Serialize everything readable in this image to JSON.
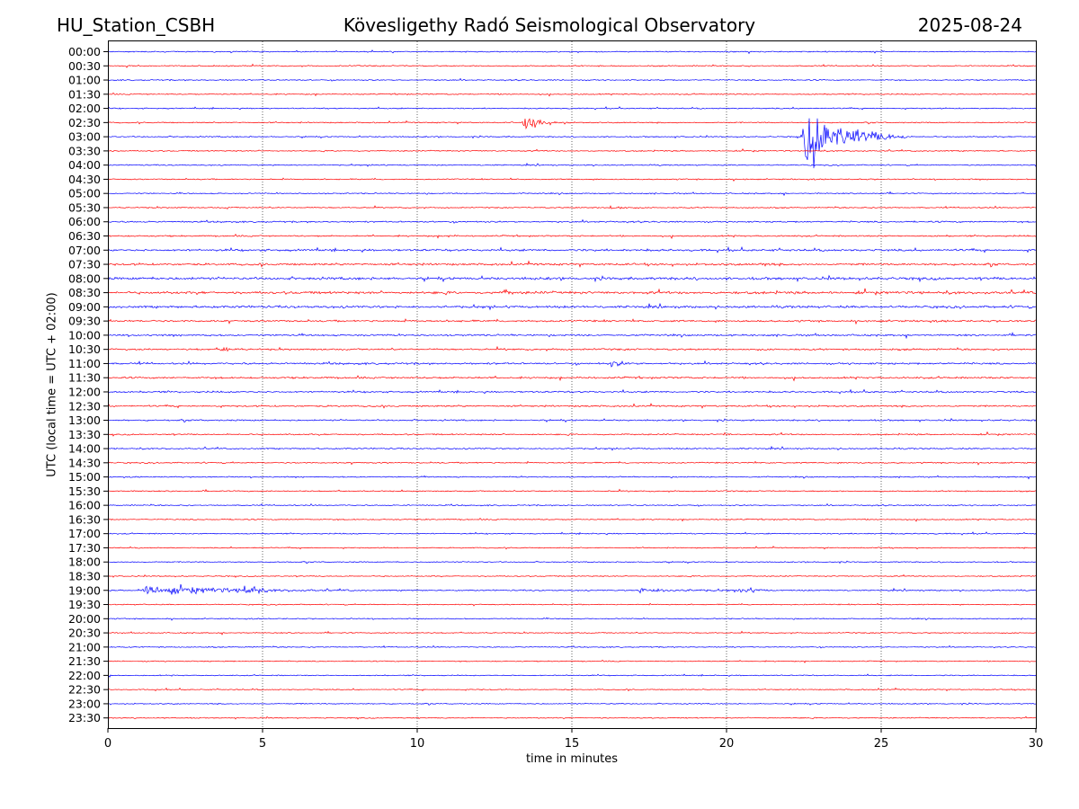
{
  "header": {
    "station": "HU_Station_CSBH",
    "title": "Kövesligethy Radó Seismological Observatory",
    "date": "2025-08-24"
  },
  "chart_data": {
    "type": "line",
    "title": "Kövesligethy Radó Seismological Observatory",
    "xlabel": "time in minutes",
    "ylabel": "UTC (local time = UTC + 02:00)",
    "xlim": [
      0,
      30
    ],
    "x_ticks": [
      "0",
      "5",
      "10",
      "15",
      "20",
      "25",
      "30"
    ],
    "grid": "vertical dotted at 5-minute ticks",
    "trace_colors": [
      "#0000ff",
      "#ff0000"
    ],
    "rows": [
      "00:00",
      "00:30",
      "01:00",
      "01:30",
      "02:00",
      "02:30",
      "03:00",
      "03:30",
      "04:00",
      "04:30",
      "05:00",
      "05:30",
      "06:00",
      "06:30",
      "07:00",
      "07:30",
      "08:00",
      "08:30",
      "09:00",
      "09:30",
      "10:00",
      "10:30",
      "11:00",
      "11:30",
      "12:00",
      "12:30",
      "13:00",
      "13:30",
      "14:00",
      "14:30",
      "15:00",
      "15:30",
      "16:00",
      "16:30",
      "17:00",
      "17:30",
      "18:00",
      "18:30",
      "19:00",
      "19:30",
      "20:00",
      "20:30",
      "21:00",
      "21:30",
      "22:00",
      "22:30",
      "23:00",
      "23:30"
    ],
    "noise_level": {
      "00:00": 1,
      "00:30": 1,
      "01:00": 1,
      "01:30": 1,
      "02:00": 1,
      "02:30": 1,
      "03:00": 1,
      "03:30": 1,
      "04:00": 1,
      "04:30": 1,
      "05:00": 1,
      "05:30": 1,
      "06:00": 1.3,
      "06:30": 1.3,
      "07:00": 1.8,
      "07:30": 1.8,
      "08:00": 2.2,
      "08:30": 2.2,
      "09:00": 2,
      "09:30": 1.6,
      "10:00": 1.5,
      "10:30": 1.5,
      "11:00": 1.6,
      "11:30": 1.6,
      "12:00": 1.4,
      "12:30": 1.4,
      "13:00": 1.3,
      "13:30": 1.2,
      "14:00": 1.2,
      "14:30": 1.1,
      "15:00": 1,
      "15:30": 1,
      "16:00": 1,
      "16:30": 1,
      "17:00": 1,
      "17:30": 0.9,
      "18:00": 0.9,
      "18:30": 0.9,
      "19:00": 1.1,
      "19:30": 0.9,
      "20:00": 0.9,
      "20:30": 0.9,
      "21:00": 0.9,
      "21:30": 0.9,
      "22:00": 0.9,
      "22:30": 0.9,
      "23:00": 0.9,
      "23:30": 0.9
    },
    "events": [
      {
        "row": "02:30",
        "start": 13.4,
        "dur": 1.6,
        "amp": 8
      },
      {
        "row": "03:00",
        "start": 22.4,
        "dur": 3.5,
        "amp": 30
      },
      {
        "row": "05:30",
        "start": 3.8,
        "dur": 0.3,
        "amp": 2.5
      },
      {
        "row": "05:30",
        "start": 16.2,
        "dur": 1.0,
        "amp": 3
      },
      {
        "row": "06:30",
        "start": 10.9,
        "dur": 0.4,
        "amp": 3
      },
      {
        "row": "07:30",
        "start": 21.1,
        "dur": 0.5,
        "amp": 3
      },
      {
        "row": "08:30",
        "start": 12.8,
        "dur": 0.5,
        "amp": 3
      },
      {
        "row": "10:30",
        "start": 3.6,
        "dur": 0.7,
        "amp": 4
      },
      {
        "row": "11:00",
        "start": 16.2,
        "dur": 1.2,
        "amp": 3
      },
      {
        "row": "11:30",
        "start": 15.3,
        "dur": 0.3,
        "amp": 2.5
      },
      {
        "row": "13:30",
        "start": 19.9,
        "dur": 0.3,
        "amp": 2.5
      },
      {
        "row": "19:00",
        "start": 0.9,
        "dur": 7.0,
        "amp": 5
      },
      {
        "row": "19:00",
        "start": 4.4,
        "dur": 0.8,
        "amp": 9
      },
      {
        "row": "19:00",
        "start": 17.0,
        "dur": 4.5,
        "amp": 2
      },
      {
        "row": "19:00",
        "start": 20.4,
        "dur": 1.0,
        "amp": 4
      }
    ]
  }
}
